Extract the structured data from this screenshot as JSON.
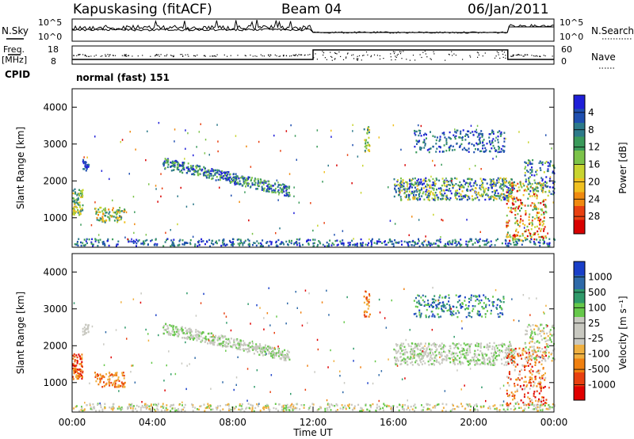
{
  "header": {
    "station": "Kapuskasing (fitACF)",
    "beam": "Beam 04",
    "date": "06/Jan/2011"
  },
  "status_panels": {
    "nsky_label": "N.Sky",
    "nsearch_label": "N.Search",
    "nave_label": "Nave",
    "freq_label": "Freq.",
    "freq_unit": "[MHz]",
    "cpid_label": "CPID",
    "cpid_value": "normal (fast) 151",
    "noise_ticks_left": [
      "10^5",
      "10^0"
    ],
    "noise_ticks_right": [
      "10^5",
      "10^0"
    ],
    "freq_ticks": [
      "18",
      "8"
    ],
    "nave_ticks": [
      "60",
      "0"
    ]
  },
  "chart_data": [
    {
      "type": "heatmap",
      "name": "power",
      "ylabel": "Slant Range [km]",
      "ylim": [
        200,
        4500
      ],
      "yticks": [
        "1000",
        "2000",
        "3000",
        "4000"
      ],
      "xlim_hours": [
        0,
        24
      ],
      "colorbar": {
        "label": "Power [dB]",
        "ticks": [
          "4",
          "8",
          "12",
          "16",
          "20",
          "24",
          "28"
        ],
        "colors": [
          "#1f1fd8",
          "#1f4fb0",
          "#2d7a8a",
          "#3a9a5a",
          "#7cc34a",
          "#c8d430",
          "#f0c020",
          "#f08a10",
          "#e84010",
          "#d80000"
        ]
      }
    },
    {
      "type": "heatmap",
      "name": "velocity",
      "ylabel": "Slant Range [km]",
      "ylim": [
        200,
        4500
      ],
      "yticks": [
        "1000",
        "2000",
        "3000",
        "4000"
      ],
      "xlabel": "Time UT",
      "xticks": [
        "00:00",
        "04:00",
        "08:00",
        "12:00",
        "16:00",
        "20:00",
        "00:00"
      ],
      "xlim_hours": [
        0,
        24
      ],
      "colorbar": {
        "label": "Velocity [m s⁻¹]",
        "ticks": [
          "1000",
          "500",
          "100",
          "25",
          "-25",
          "-100",
          "-500",
          "-1000"
        ],
        "colors": [
          "#1a3fc8",
          "#2f6aa8",
          "#2f9a6a",
          "#66c84a",
          "#c8c8c0",
          "#c8c8c0",
          "#f0b040",
          "#f08010",
          "#e84010",
          "#e00000"
        ]
      }
    }
  ]
}
